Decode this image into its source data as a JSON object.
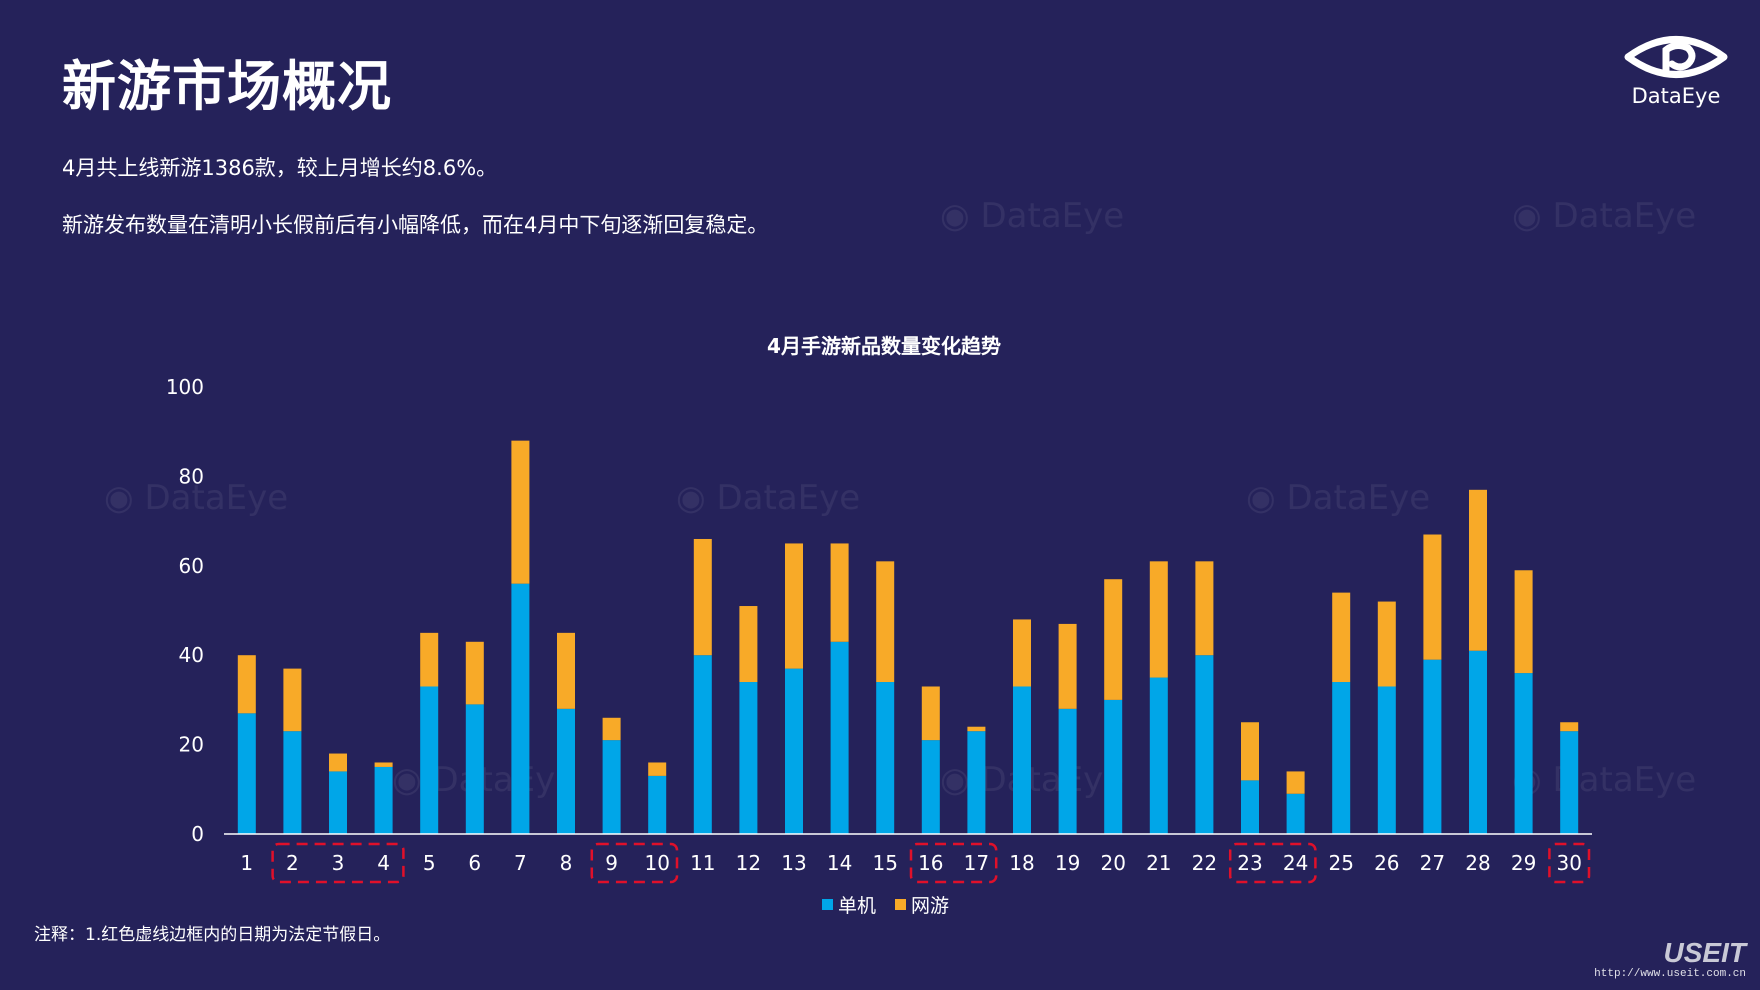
{
  "page": {
    "title": "新游市场概况",
    "paragraph1": "4月共上线新游1386款，较上月增长约8.6%。",
    "paragraph2": "新游发布数量在清明小长假前后有小幅降低，而在4月中下旬逐渐回复稳定。",
    "note": "注释：1.红色虚线边框内的日期为法定节假日。",
    "logo_text": "DataEye",
    "watermark_text": "DataEye",
    "brand_text": "USEIT",
    "brand_url": "http://www.useit.com.cn"
  },
  "colors": {
    "background": "#25225a",
    "single": "#00a6e8",
    "online": "#f8aa28",
    "holiday_box": "#e0102a",
    "axis": "#ffffff"
  },
  "chart_data": {
    "type": "bar",
    "stacked": true,
    "title": "4月手游新品数量变化趋势",
    "xlabel": "",
    "ylabel": "",
    "ylim": [
      0,
      100
    ],
    "yticks": [
      0,
      20,
      40,
      60,
      80,
      100
    ],
    "grid": false,
    "legend_position": "bottom-center",
    "categories": [
      "1",
      "2",
      "3",
      "4",
      "5",
      "6",
      "7",
      "8",
      "9",
      "10",
      "11",
      "12",
      "13",
      "14",
      "15",
      "16",
      "17",
      "18",
      "19",
      "20",
      "21",
      "22",
      "23",
      "24",
      "25",
      "26",
      "27",
      "28",
      "29",
      "30"
    ],
    "series": [
      {
        "name": "单机",
        "color": "#00a6e8",
        "values": [
          27,
          23,
          14,
          15,
          33,
          29,
          56,
          28,
          21,
          13,
          40,
          34,
          37,
          43,
          34,
          21,
          23,
          33,
          28,
          30,
          35,
          40,
          12,
          9,
          34,
          33,
          39,
          41,
          36,
          23
        ]
      },
      {
        "name": "网游",
        "color": "#f8aa28",
        "values": [
          13,
          14,
          4,
          1,
          12,
          14,
          32,
          17,
          5,
          3,
          26,
          17,
          28,
          22,
          27,
          12,
          1,
          15,
          19,
          27,
          26,
          21,
          13,
          5,
          20,
          19,
          28,
          36,
          23,
          2
        ]
      }
    ],
    "holiday_groups": [
      [
        "2",
        "3",
        "4"
      ],
      [
        "9",
        "10"
      ],
      [
        "16",
        "17"
      ],
      [
        "23",
        "24"
      ],
      [
        "30"
      ]
    ]
  }
}
